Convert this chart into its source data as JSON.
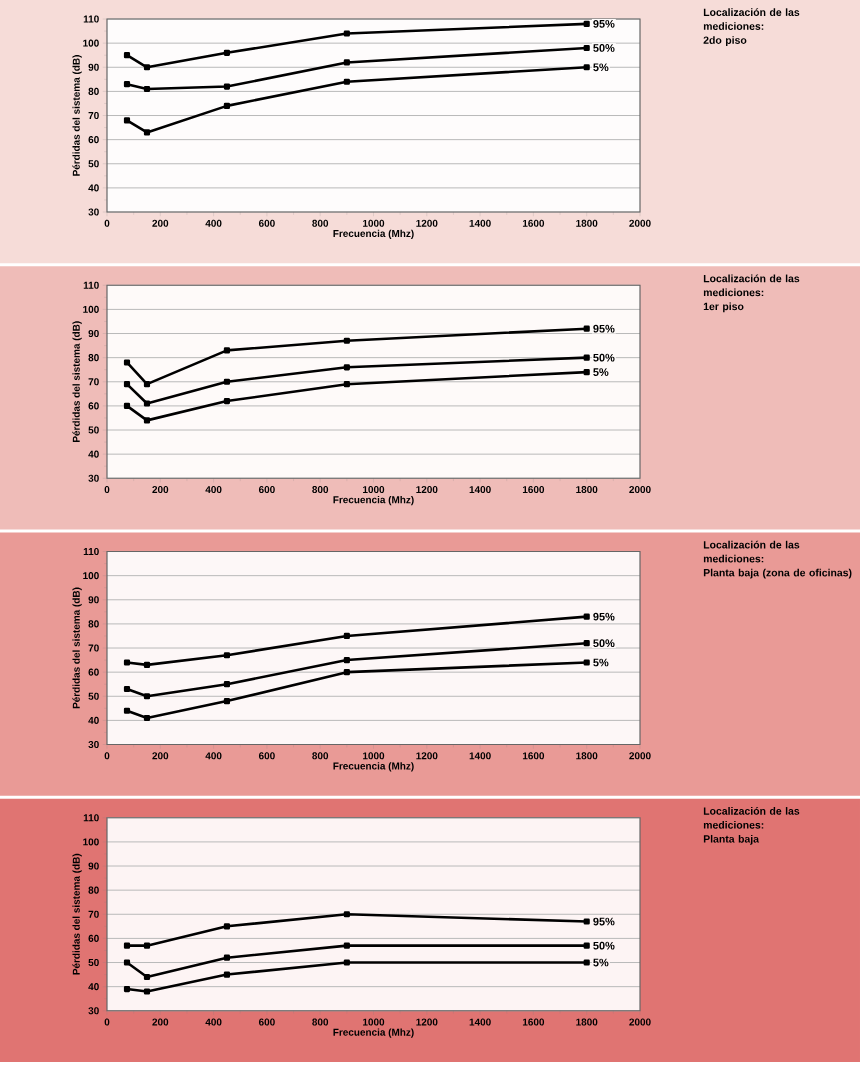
{
  "chart_data": [
    {
      "type": "line",
      "xlabel": "Frecuencia (Mhz)",
      "ylabel": "Pérdidas del sistema (dB)",
      "x": [
        75,
        150,
        450,
        900,
        1800
      ],
      "xlim": [
        0,
        2000
      ],
      "xticks": [
        0,
        200,
        400,
        600,
        800,
        1000,
        1200,
        1400,
        1600,
        1800,
        2000
      ],
      "ylim": [
        30,
        110
      ],
      "yticks": [
        30,
        40,
        50,
        60,
        70,
        80,
        90,
        100,
        110
      ],
      "grid": "y",
      "marker": "square",
      "line_style": "solid",
      "annotations": [
        "Localización de las mediciones:",
        "2do piso"
      ],
      "series": [
        {
          "name": "95%",
          "color": "#000000",
          "values": [
            95,
            90,
            96,
            104,
            108
          ]
        },
        {
          "name": "50%",
          "color": "#000000",
          "values": [
            83,
            81,
            82,
            92,
            98
          ]
        },
        {
          "name": "5%",
          "color": "#000000",
          "values": [
            68,
            63,
            74,
            84,
            90
          ]
        }
      ]
    },
    {
      "type": "line",
      "xlabel": "Frecuencia (Mhz)",
      "ylabel": "Pérdidas del sistema (dB)",
      "x": [
        75,
        150,
        450,
        900,
        1800
      ],
      "xlim": [
        0,
        2000
      ],
      "xticks": [
        0,
        200,
        400,
        600,
        800,
        1000,
        1200,
        1400,
        1600,
        1800,
        2000
      ],
      "ylim": [
        30,
        110
      ],
      "yticks": [
        30,
        40,
        50,
        60,
        70,
        80,
        90,
        100,
        110
      ],
      "grid": "y",
      "marker": "square",
      "line_style": "solid",
      "annotations": [
        "Localización de las mediciones:",
        "1er piso"
      ],
      "series": [
        {
          "name": "95%",
          "color": "#000000",
          "values": [
            78,
            69,
            83,
            87,
            92
          ]
        },
        {
          "name": "50%",
          "color": "#000000",
          "values": [
            69,
            61,
            70,
            76,
            80
          ]
        },
        {
          "name": "5%",
          "color": "#000000",
          "values": [
            60,
            54,
            62,
            69,
            74
          ]
        }
      ]
    },
    {
      "type": "line",
      "xlabel": "Frecuencia (Mhz)",
      "ylabel": "Pérdidas del sistema (dB)",
      "x": [
        75,
        150,
        450,
        900,
        1800
      ],
      "xlim": [
        0,
        2000
      ],
      "xticks": [
        0,
        200,
        400,
        600,
        800,
        1000,
        1200,
        1400,
        1600,
        1800,
        2000
      ],
      "ylim": [
        30,
        110
      ],
      "yticks": [
        30,
        40,
        50,
        60,
        70,
        80,
        90,
        100,
        110
      ],
      "grid": "y",
      "marker": "square",
      "line_style": "solid",
      "annotations": [
        "Localización de las mediciones:",
        "Planta baja (zona de oficinas)"
      ],
      "series": [
        {
          "name": "95%",
          "color": "#000000",
          "values": [
            64,
            63,
            67,
            75,
            83
          ]
        },
        {
          "name": "50%",
          "color": "#000000",
          "values": [
            53,
            50,
            55,
            65,
            72
          ]
        },
        {
          "name": "5%",
          "color": "#000000",
          "values": [
            44,
            41,
            48,
            60,
            64
          ]
        }
      ]
    },
    {
      "type": "line",
      "xlabel": "Frecuencia (Mhz)",
      "ylabel": "Pérdidas del sistema (dB)",
      "x": [
        75,
        150,
        450,
        900,
        1800
      ],
      "xlim": [
        0,
        2000
      ],
      "xticks": [
        0,
        200,
        400,
        600,
        800,
        1000,
        1200,
        1400,
        1600,
        1800,
        2000
      ],
      "ylim": [
        30,
        110
      ],
      "yticks": [
        30,
        40,
        50,
        60,
        70,
        80,
        90,
        100,
        110
      ],
      "grid": "y",
      "marker": "square",
      "line_style": "solid",
      "annotations": [
        "Localización de las mediciones:",
        "Planta baja"
      ],
      "series": [
        {
          "name": "95%",
          "color": "#000000",
          "values": [
            57,
            57,
            65,
            70,
            67
          ]
        },
        {
          "name": "50%",
          "color": "#000000",
          "values": [
            50,
            44,
            52,
            57,
            57
          ]
        },
        {
          "name": "5%",
          "color": "#000000",
          "values": [
            39,
            38,
            45,
            50,
            50
          ]
        }
      ]
    }
  ]
}
